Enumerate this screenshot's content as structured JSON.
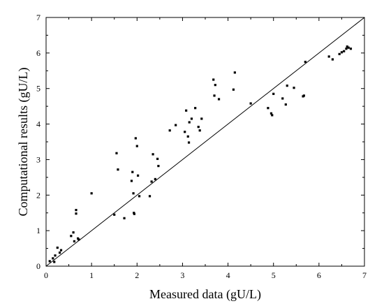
{
  "chart_data": {
    "type": "scatter",
    "xlabel": "Measured data (gU/L)",
    "ylabel": "Computational results (gU/L)",
    "xlim": [
      0,
      7
    ],
    "ylim": [
      0,
      7
    ],
    "xticks": [
      0,
      1,
      2,
      3,
      4,
      5,
      6,
      7
    ],
    "yticks": [
      0,
      1,
      2,
      3,
      4,
      5,
      6,
      7
    ],
    "grid": false,
    "reference_line": {
      "from": [
        0,
        0
      ],
      "to": [
        7,
        7
      ]
    },
    "series": [
      {
        "marker": "square",
        "color": "#000000",
        "points": [
          [
            0.08,
            0.14
          ],
          [
            0.15,
            0.22
          ],
          [
            0.18,
            0.12
          ],
          [
            0.2,
            0.3
          ],
          [
            0.25,
            0.52
          ],
          [
            0.3,
            0.38
          ],
          [
            0.33,
            0.45
          ],
          [
            0.55,
            0.85
          ],
          [
            0.6,
            0.95
          ],
          [
            0.62,
            0.7
          ],
          [
            0.66,
            1.48
          ],
          [
            0.66,
            1.58
          ],
          [
            0.7,
            0.78
          ],
          [
            0.72,
            0.75
          ],
          [
            1.0,
            2.05
          ],
          [
            1.5,
            1.45
          ],
          [
            1.55,
            3.18
          ],
          [
            1.58,
            2.72
          ],
          [
            1.72,
            1.35
          ],
          [
            1.88,
            2.4
          ],
          [
            1.9,
            2.65
          ],
          [
            1.92,
            2.05
          ],
          [
            1.93,
            1.5
          ],
          [
            1.94,
            1.47
          ],
          [
            1.97,
            3.6
          ],
          [
            2.0,
            3.38
          ],
          [
            2.02,
            2.55
          ],
          [
            2.05,
            1.97
          ],
          [
            2.28,
            1.97
          ],
          [
            2.32,
            2.38
          ],
          [
            2.35,
            3.15
          ],
          [
            2.4,
            2.45
          ],
          [
            2.45,
            3.02
          ],
          [
            2.47,
            2.82
          ],
          [
            2.72,
            3.82
          ],
          [
            2.85,
            3.97
          ],
          [
            3.05,
            3.78
          ],
          [
            3.08,
            4.38
          ],
          [
            3.12,
            3.65
          ],
          [
            3.14,
            3.48
          ],
          [
            3.15,
            4.05
          ],
          [
            3.2,
            4.15
          ],
          [
            3.28,
            4.45
          ],
          [
            3.35,
            3.92
          ],
          [
            3.38,
            3.82
          ],
          [
            3.42,
            4.15
          ],
          [
            3.68,
            5.25
          ],
          [
            3.7,
            4.8
          ],
          [
            3.72,
            5.1
          ],
          [
            3.8,
            4.7
          ],
          [
            4.12,
            4.97
          ],
          [
            4.15,
            5.45
          ],
          [
            4.5,
            4.58
          ],
          [
            4.88,
            4.45
          ],
          [
            4.95,
            4.3
          ],
          [
            4.97,
            4.25
          ],
          [
            5.0,
            4.85
          ],
          [
            5.2,
            4.72
          ],
          [
            5.27,
            4.55
          ],
          [
            5.3,
            5.08
          ],
          [
            5.45,
            5.02
          ],
          [
            5.65,
            4.78
          ],
          [
            5.67,
            4.8
          ],
          [
            5.7,
            5.75
          ],
          [
            6.22,
            5.9
          ],
          [
            6.3,
            5.82
          ],
          [
            6.45,
            5.97
          ],
          [
            6.5,
            6.02
          ],
          [
            6.55,
            6.05
          ],
          [
            6.6,
            6.12
          ],
          [
            6.62,
            6.18
          ],
          [
            6.65,
            6.15
          ],
          [
            6.7,
            6.12
          ]
        ]
      }
    ]
  }
}
